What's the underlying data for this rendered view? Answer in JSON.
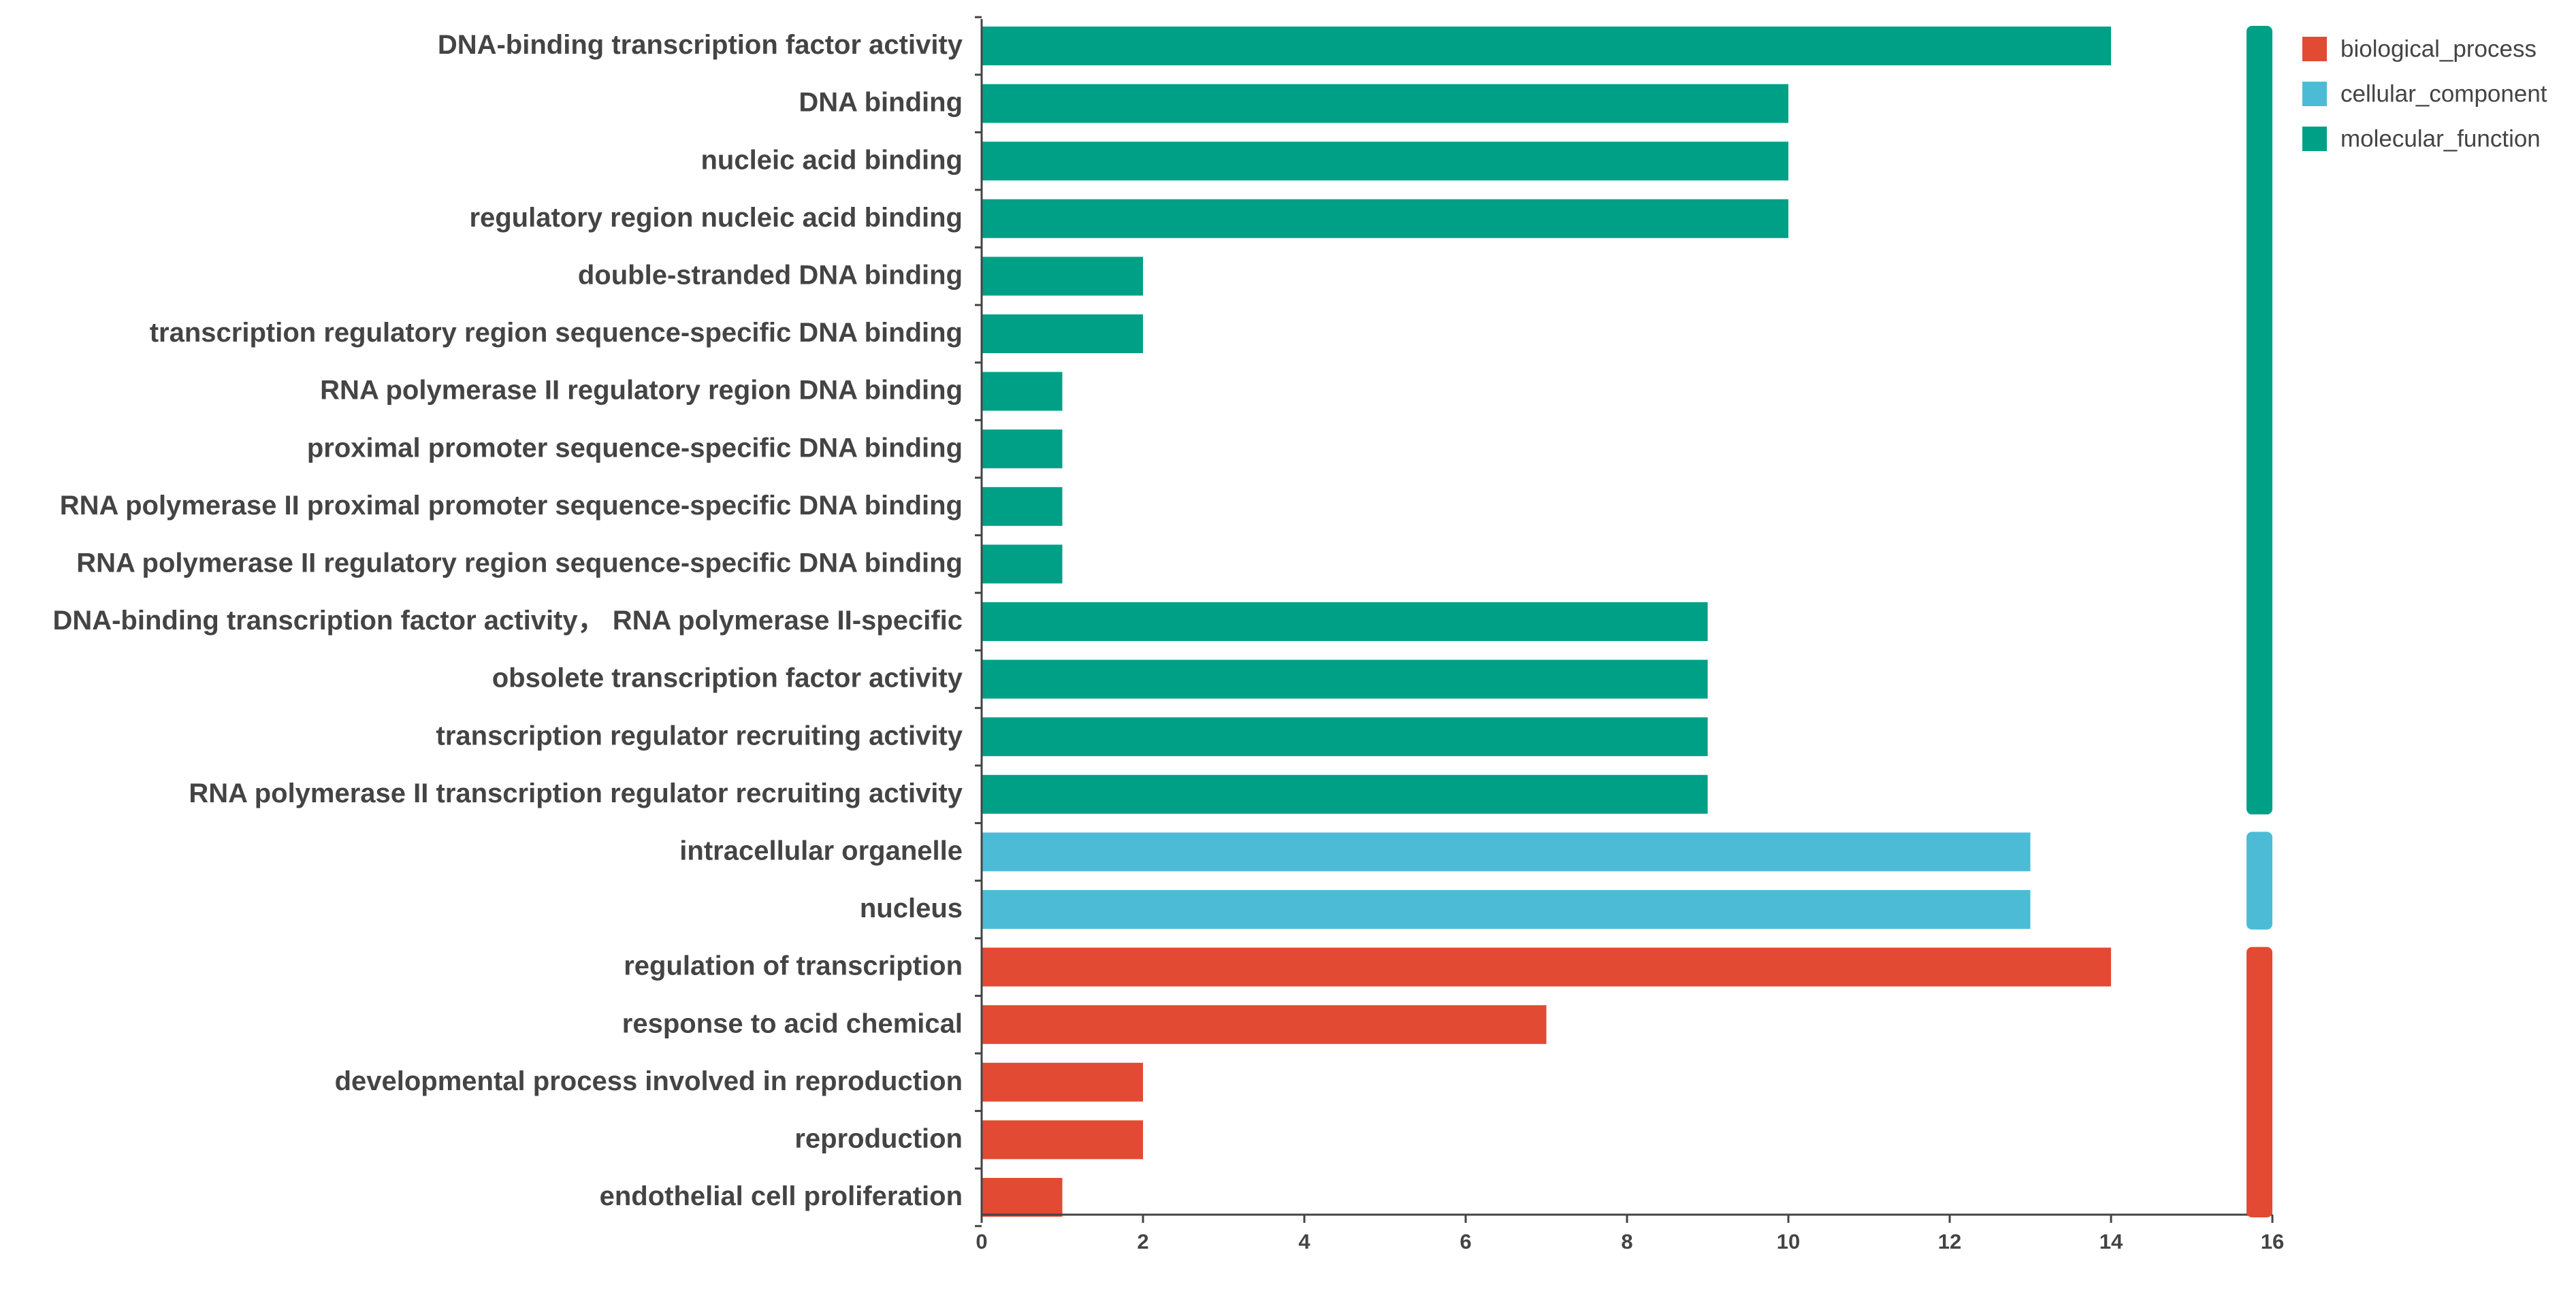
{
  "chart_data": {
    "type": "bar",
    "orientation": "horizontal",
    "title": "",
    "xlabel": "",
    "ylabel": "",
    "xlim": [
      0,
      16
    ],
    "xticks": [
      0,
      2,
      4,
      6,
      8,
      10,
      12,
      14,
      16
    ],
    "grid": false,
    "legend_position": "top-right",
    "colors": {
      "biological_process": "#e24a33",
      "cellular_component": "#4cbcd6",
      "molecular_function": "#00a087"
    },
    "legend": [
      {
        "key": "biological_process",
        "label": "biological_process"
      },
      {
        "key": "cellular_component",
        "label": "cellular_component"
      },
      {
        "key": "molecular_function",
        "label": "molecular_function"
      }
    ],
    "categories": [
      {
        "label": "DNA-binding transcription factor activity",
        "value": 14,
        "group": "molecular_function"
      },
      {
        "label": "DNA binding",
        "value": 10,
        "group": "molecular_function"
      },
      {
        "label": "nucleic acid binding",
        "value": 10,
        "group": "molecular_function"
      },
      {
        "label": "regulatory region nucleic acid binding",
        "value": 10,
        "group": "molecular_function"
      },
      {
        "label": "double-stranded DNA binding",
        "value": 2,
        "group": "molecular_function"
      },
      {
        "label": "transcription regulatory region sequence-specific DNA binding",
        "value": 2,
        "group": "molecular_function"
      },
      {
        "label": "RNA polymerase II regulatory region DNA binding",
        "value": 1,
        "group": "molecular_function"
      },
      {
        "label": "proximal promoter sequence-specific DNA binding",
        "value": 1,
        "group": "molecular_function"
      },
      {
        "label": "RNA polymerase II proximal promoter sequence-specific DNA binding",
        "value": 1,
        "group": "molecular_function"
      },
      {
        "label": "RNA polymerase II regulatory region sequence-specific DNA binding",
        "value": 1,
        "group": "molecular_function"
      },
      {
        "label": "DNA-binding transcription factor activity， RNA polymerase II-specific",
        "value": 9,
        "group": "molecular_function"
      },
      {
        "label": "obsolete transcription factor activity",
        "value": 9,
        "group": "molecular_function"
      },
      {
        "label": "transcription regulator recruiting activity",
        "value": 9,
        "group": "molecular_function"
      },
      {
        "label": "RNA polymerase II transcription regulator recruiting activity",
        "value": 9,
        "group": "molecular_function"
      },
      {
        "label": "intracellular organelle",
        "value": 13,
        "group": "cellular_component"
      },
      {
        "label": "nucleus",
        "value": 13,
        "group": "cellular_component"
      },
      {
        "label": "regulation of transcription",
        "value": 14,
        "group": "biological_process"
      },
      {
        "label": "response to acid chemical",
        "value": 7,
        "group": "biological_process"
      },
      {
        "label": "developmental process involved in reproduction",
        "value": 2,
        "group": "biological_process"
      },
      {
        "label": "reproduction",
        "value": 2,
        "group": "biological_process"
      },
      {
        "label": "endothelial cell proliferation",
        "value": 1,
        "group": "biological_process"
      }
    ]
  }
}
